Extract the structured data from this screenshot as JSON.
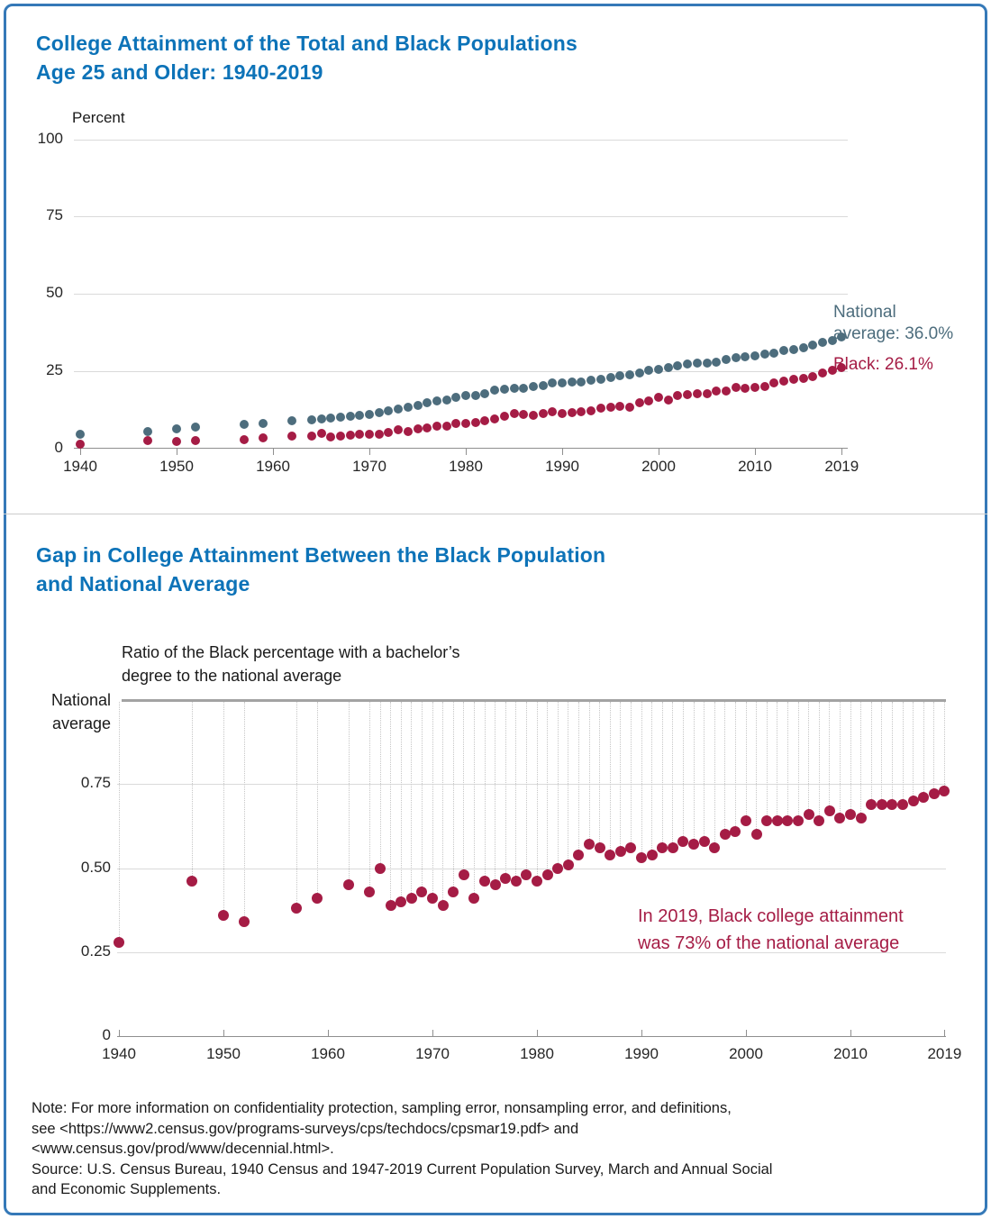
{
  "colors": {
    "title_blue": "#0d73b8",
    "national_series": "#4d6d7d",
    "black_series": "#a51c45",
    "frame_border": "#3579b8"
  },
  "chart_data": [
    {
      "type": "scatter",
      "title": "College Attainment of the Total and Black Populations\nAge 25 and Older: 1940-2019",
      "ylabel": "Percent",
      "ylim": [
        0,
        100
      ],
      "grid": true,
      "legend_position": "right-of-last-point",
      "y_ticks": [
        {
          "value": 100,
          "label": "100"
        },
        {
          "value": 75,
          "label": "75"
        },
        {
          "value": 50,
          "label": "50"
        },
        {
          "value": 25,
          "label": "25"
        },
        {
          "value": 0,
          "label": "0"
        }
      ],
      "x_ticks": [
        {
          "value": 1940,
          "label": "1940"
        },
        {
          "value": 1950,
          "label": "1950"
        },
        {
          "value": 1960,
          "label": "1960"
        },
        {
          "value": 1970,
          "label": "1970"
        },
        {
          "value": 1980,
          "label": "1980"
        },
        {
          "value": 1990,
          "label": "1990"
        },
        {
          "value": 2000,
          "label": "2000"
        },
        {
          "value": 2010,
          "label": "2010"
        },
        {
          "value": 2019,
          "label": "2019"
        }
      ],
      "years": [
        1940,
        1947,
        1950,
        1952,
        1957,
        1959,
        1962,
        1964,
        1965,
        1966,
        1967,
        1968,
        1969,
        1970,
        1971,
        1972,
        1973,
        1974,
        1975,
        1976,
        1977,
        1978,
        1979,
        1980,
        1981,
        1982,
        1983,
        1984,
        1985,
        1986,
        1987,
        1988,
        1989,
        1990,
        1991,
        1992,
        1993,
        1994,
        1995,
        1996,
        1997,
        1998,
        1999,
        2000,
        2001,
        2002,
        2003,
        2004,
        2005,
        2006,
        2007,
        2008,
        2009,
        2010,
        2011,
        2012,
        2013,
        2014,
        2015,
        2016,
        2017,
        2018,
        2019
      ],
      "series": [
        {
          "name": "National average",
          "label": "National\naverage: 36.0%",
          "color": "#4d6d7d",
          "values": [
            4.6,
            5.4,
            6.2,
            7.0,
            7.6,
            8.1,
            8.9,
            9.1,
            9.4,
            9.8,
            10.1,
            10.5,
            10.7,
            11.0,
            11.4,
            12.0,
            12.6,
            13.3,
            13.9,
            14.7,
            15.4,
            15.7,
            16.4,
            17.0,
            17.1,
            17.7,
            18.8,
            19.1,
            19.4,
            19.4,
            19.9,
            20.3,
            21.1,
            21.3,
            21.4,
            21.4,
            21.9,
            22.2,
            23.0,
            23.6,
            23.9,
            24.4,
            25.2,
            25.6,
            26.2,
            26.7,
            27.2,
            27.7,
            27.7,
            28.0,
            28.7,
            29.4,
            29.5,
            29.9,
            30.4,
            30.9,
            31.7,
            32.0,
            32.5,
            33.4,
            34.2,
            35.0,
            36.0
          ]
        },
        {
          "name": "Black",
          "label": "Black: 26.1%",
          "color": "#a51c45",
          "values": [
            1.3,
            2.5,
            2.2,
            2.4,
            2.9,
            3.3,
            4.0,
            3.9,
            4.7,
            3.8,
            4.0,
            4.3,
            4.6,
            4.5,
            4.5,
            5.1,
            6.0,
            5.5,
            6.4,
            6.6,
            7.2,
            7.2,
            7.9,
            7.9,
            8.2,
            8.8,
            9.5,
            10.4,
            11.1,
            10.9,
            10.7,
            11.2,
            11.8,
            11.3,
            11.5,
            11.9,
            12.2,
            12.9,
            13.2,
            13.6,
            13.3,
            14.7,
            15.4,
            16.5,
            15.7,
            17.0,
            17.3,
            17.6,
            17.6,
            18.5,
            18.5,
            19.6,
            19.3,
            19.8,
            19.9,
            21.2,
            21.8,
            22.2,
            22.5,
            23.3,
            24.3,
            25.2,
            26.1
          ]
        }
      ]
    },
    {
      "type": "scatter",
      "title": "Gap in College Attainment Between the Black Population\nand National Average",
      "subtitle": "Ratio of the Black percentage with a bachelor’s\ndegree to the national average",
      "top_reference_label": "National\naverage",
      "top_reference_value": 1.0,
      "ylim": [
        0,
        1.0
      ],
      "grid": true,
      "annotation": "In 2019, Black college attainment\nwas 73% of the national average",
      "annotation_color": "#a51c45",
      "dot_color": "#a51c45",
      "y_ticks": [
        {
          "value": 0.75,
          "label": "0.75"
        },
        {
          "value": 0.5,
          "label": "0.50"
        },
        {
          "value": 0.25,
          "label": "0.25"
        },
        {
          "value": 0,
          "label": "0"
        }
      ],
      "x_ticks": [
        {
          "value": 1940,
          "label": "1940"
        },
        {
          "value": 1950,
          "label": "1950"
        },
        {
          "value": 1960,
          "label": "1960"
        },
        {
          "value": 1970,
          "label": "1970"
        },
        {
          "value": 1980,
          "label": "1980"
        },
        {
          "value": 1990,
          "label": "1990"
        },
        {
          "value": 2000,
          "label": "2000"
        },
        {
          "value": 2010,
          "label": "2010"
        },
        {
          "value": 2019,
          "label": "2019"
        }
      ],
      "years": [
        1940,
        1947,
        1950,
        1952,
        1957,
        1959,
        1962,
        1964,
        1965,
        1966,
        1967,
        1968,
        1969,
        1970,
        1971,
        1972,
        1973,
        1974,
        1975,
        1976,
        1977,
        1978,
        1979,
        1980,
        1981,
        1982,
        1983,
        1984,
        1985,
        1986,
        1987,
        1988,
        1989,
        1990,
        1991,
        1992,
        1993,
        1994,
        1995,
        1996,
        1997,
        1998,
        1999,
        2000,
        2001,
        2002,
        2003,
        2004,
        2005,
        2006,
        2007,
        2008,
        2009,
        2010,
        2011,
        2012,
        2013,
        2014,
        2015,
        2016,
        2017,
        2018,
        2019
      ],
      "values": [
        0.28,
        0.46,
        0.36,
        0.34,
        0.38,
        0.41,
        0.45,
        0.43,
        0.5,
        0.39,
        0.4,
        0.41,
        0.43,
        0.41,
        0.39,
        0.43,
        0.48,
        0.41,
        0.46,
        0.45,
        0.47,
        0.46,
        0.48,
        0.46,
        0.48,
        0.5,
        0.51,
        0.54,
        0.57,
        0.56,
        0.54,
        0.55,
        0.56,
        0.53,
        0.54,
        0.56,
        0.56,
        0.58,
        0.57,
        0.58,
        0.56,
        0.6,
        0.61,
        0.64,
        0.6,
        0.64,
        0.64,
        0.64,
        0.64,
        0.66,
        0.64,
        0.67,
        0.65,
        0.66,
        0.65,
        0.69,
        0.69,
        0.69,
        0.69,
        0.7,
        0.71,
        0.72,
        0.73
      ]
    }
  ],
  "footer": {
    "note": "Note: For more information on confidentiality protection, sampling error, nonsampling error, and definitions,\nsee <https://www2.census.gov/programs-surveys/cps/techdocs/cpsmar19.pdf> and\n<www.census.gov/prod/www/decennial.html>.\nSource: U.S. Census Bureau, 1940 Census and 1947-2019 Current Population Survey, March and Annual Social\nand Economic Supplements."
  }
}
